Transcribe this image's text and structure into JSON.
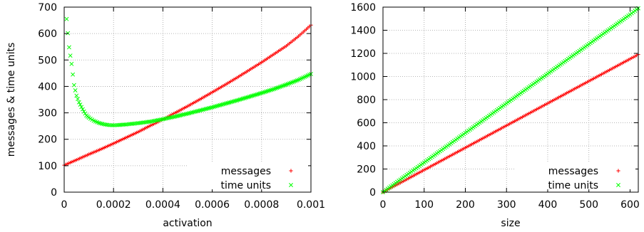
{
  "chart_data": [
    {
      "type": "scatter",
      "xlabel": "activation",
      "ylabel": "messages & time units",
      "xlim": [
        0,
        0.001
      ],
      "ylim": [
        0,
        700
      ],
      "xticks": [
        0,
        0.0002,
        0.0004,
        0.0006,
        0.0008,
        0.001
      ],
      "xtick_labels": [
        "0",
        "0.0002",
        "0.0004",
        "0.0006",
        "0.0008",
        "0.001"
      ],
      "yticks": [
        0,
        100,
        200,
        300,
        400,
        500,
        600,
        700
      ],
      "ytick_labels": [
        "0",
        "100",
        "200",
        "300",
        "400",
        "500",
        "600",
        "700"
      ],
      "grid": true,
      "legend_position": "bottom-right",
      "series": [
        {
          "name": "messages",
          "color": "#ff0000",
          "marker": "+",
          "x": [
            0,
            5e-05,
            0.0001,
            0.00015,
            0.0002,
            0.00025,
            0.0003,
            0.00035,
            0.0004,
            0.00045,
            0.0005,
            0.00055,
            0.0006,
            0.00065,
            0.0007,
            0.00075,
            0.0008,
            0.00085,
            0.0009,
            0.00095,
            0.001
          ],
          "y": [
            102,
            122,
            143,
            163,
            184,
            206,
            228,
            252,
            275,
            300,
            325,
            351,
            378,
            405,
            433,
            462,
            491,
            522,
            553,
            590,
            632
          ]
        },
        {
          "name": "time units",
          "color": "#00ff00",
          "marker": "x",
          "x": [
            1e-05,
            2e-05,
            3e-05,
            4e-05,
            5e-05,
            6e-05,
            7e-05,
            8e-05,
            9e-05,
            0.0001,
            0.00012,
            0.00014,
            0.00016,
            0.00018,
            0.0002,
            0.00022,
            0.00025,
            0.0003,
            0.00035,
            0.0004,
            0.00045,
            0.0005,
            0.00055,
            0.0006,
            0.00065,
            0.0007,
            0.00075,
            0.0008,
            0.00085,
            0.0009,
            0.00095,
            0.001
          ],
          "y": [
            655,
            548,
            485,
            405,
            365,
            340,
            322,
            305,
            290,
            282,
            270,
            262,
            257,
            254,
            253,
            254,
            256,
            261,
            267,
            276,
            286,
            297,
            309,
            321,
            334,
            347,
            361,
            375,
            390,
            407,
            425,
            447
          ]
        }
      ]
    },
    {
      "type": "scatter",
      "xlabel": "size",
      "ylabel": "",
      "xlim": [
        0,
        620
      ],
      "ylim": [
        0,
        1600
      ],
      "xticks": [
        0,
        100,
        200,
        300,
        400,
        500,
        600
      ],
      "xtick_labels": [
        "0",
        "100",
        "200",
        "300",
        "400",
        "500",
        "600"
      ],
      "yticks": [
        0,
        200,
        400,
        600,
        800,
        1000,
        1200,
        1400,
        1600
      ],
      "ytick_labels": [
        "0",
        "200",
        "400",
        "600",
        "800",
        "1000",
        "1200",
        "1400",
        "1600"
      ],
      "grid": true,
      "legend_position": "bottom-right",
      "series": [
        {
          "name": "messages",
          "color": "#ff0000",
          "marker": "+",
          "x": [
            0,
            50,
            100,
            150,
            200,
            250,
            300,
            350,
            400,
            450,
            500,
            550,
            600,
            620
          ],
          "y": [
            0,
            96,
            192,
            288,
            384,
            480,
            576,
            672,
            768,
            864,
            960,
            1056,
            1152,
            1190
          ]
        },
        {
          "name": "time units",
          "color": "#00ff00",
          "marker": "x",
          "x": [
            0,
            50,
            100,
            150,
            200,
            250,
            300,
            350,
            400,
            450,
            500,
            550,
            600,
            620
          ],
          "y": [
            0,
            128,
            256,
            384,
            512,
            640,
            768,
            896,
            1024,
            1152,
            1280,
            1408,
            1536,
            1590
          ]
        }
      ]
    }
  ]
}
